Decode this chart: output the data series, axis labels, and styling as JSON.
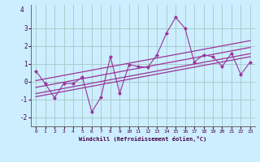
{
  "xlabel": "Windchill (Refroidissement éolien,°C)",
  "x": [
    0,
    1,
    2,
    3,
    4,
    5,
    6,
    7,
    8,
    9,
    10,
    11,
    12,
    13,
    14,
    15,
    16,
    17,
    18,
    19,
    20,
    21,
    22,
    23
  ],
  "y_scatter": [
    0.6,
    -0.1,
    -0.9,
    -0.1,
    -0.1,
    0.25,
    -1.7,
    -0.85,
    1.4,
    -0.65,
    0.95,
    0.85,
    0.8,
    1.5,
    2.7,
    3.6,
    3.0,
    1.1,
    1.5,
    1.4,
    0.85,
    1.6,
    0.4,
    1.1
  ],
  "background_color": "#cceeff",
  "grid_color": "#aacccc",
  "line_color": "#993399",
  "ylim": [
    -2.5,
    4.3
  ],
  "xlim": [
    -0.5,
    23.5
  ],
  "yticks": [
    -2,
    -1,
    0,
    1,
    2,
    3
  ],
  "xticks": [
    0,
    1,
    2,
    3,
    4,
    5,
    6,
    7,
    8,
    9,
    10,
    11,
    12,
    13,
    14,
    15,
    16,
    17,
    18,
    19,
    20,
    21,
    22,
    23
  ],
  "reg_offsets": [
    0.38,
    0.0,
    -0.35,
    -0.52
  ]
}
